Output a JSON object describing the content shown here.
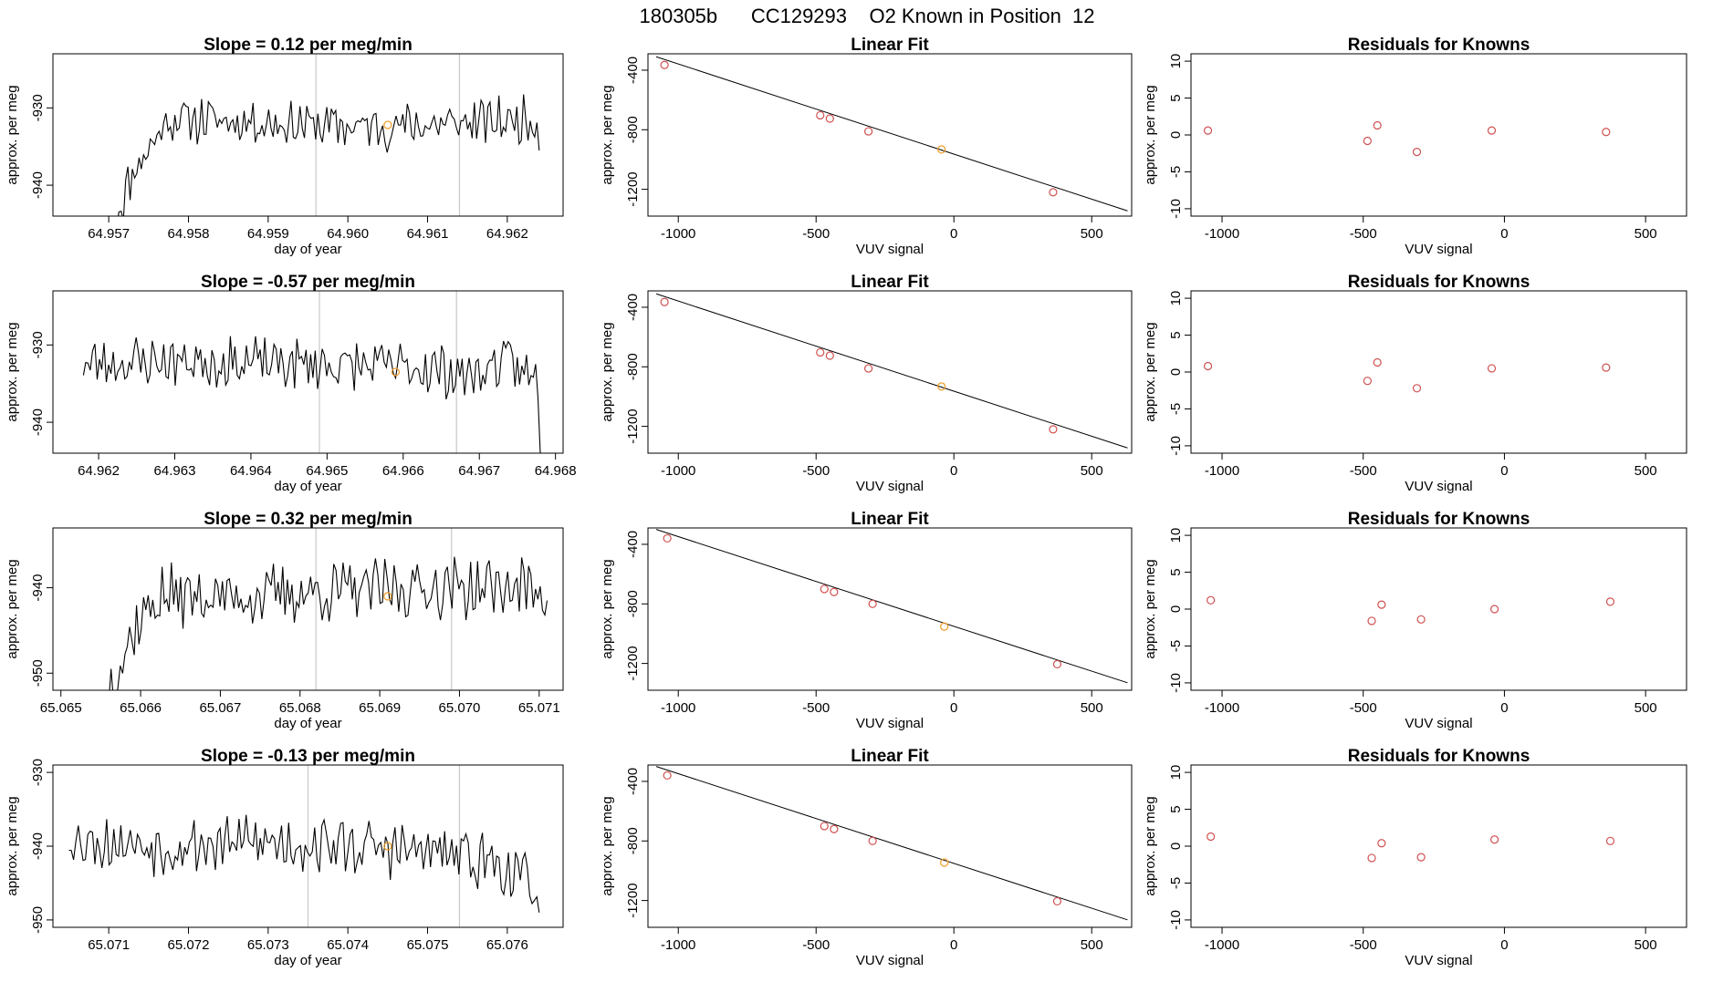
{
  "header": {
    "title": "180305b      CC129293    O2 Known in Position  12"
  },
  "colors": {
    "series_line": "#000000",
    "highlight_point": "#f0a030",
    "known_points": "#d05050",
    "marker_lines": "#c8c8c8",
    "fit_line": "#000000"
  },
  "chart_data": [
    {
      "type": "line",
      "panel": "timeseries",
      "row": 0,
      "title": "Slope =  0.12  per meg/min",
      "xlabel": "day of year",
      "ylabel": "approx. per meg",
      "xlim": [
        64.9563,
        64.9627
      ],
      "ylim": [
        -944,
        -923
      ],
      "xticks": [
        64.957,
        64.958,
        64.959,
        64.96,
        64.961,
        64.962
      ],
      "xtick_labels": [
        "64.957",
        "64.958",
        "64.959",
        "64.960",
        "64.961",
        "64.962"
      ],
      "yticks": [
        -930,
        -940
      ],
      "ytick_labels": [
        "-930",
        "-940"
      ],
      "vlines": [
        64.9596,
        64.9614
      ],
      "highlight": {
        "x": 64.9605,
        "y": -932.2
      },
      "series": {
        "x_start": 64.9571,
        "x_end": 64.9624,
        "seed": 11,
        "anchors": [
          [
            0.0,
            -944
          ],
          [
            0.04,
            -938
          ],
          [
            0.08,
            -935
          ],
          [
            0.12,
            -931.5
          ],
          [
            0.2,
            -931.5
          ],
          [
            0.4,
            -932
          ],
          [
            0.6,
            -932.5
          ],
          [
            0.8,
            -932
          ],
          [
            1.0,
            -931.5
          ]
        ],
        "amp": 2.5,
        "points": 190,
        "end_value": -935.5
      }
    },
    {
      "type": "line",
      "panel": "fit",
      "row": 0,
      "title": "Linear Fit",
      "xlabel": "VUV signal",
      "ylabel": "approx. per meg",
      "xlim": [
        -1110,
        645
      ],
      "ylim": [
        -1380,
        -290
      ],
      "xticks": [
        -1000,
        -500,
        0,
        500
      ],
      "xtick_labels": [
        "-1000",
        "-500",
        "0",
        "500"
      ],
      "yticks": [
        -400,
        -800,
        -1200
      ],
      "ytick_labels": [
        "-400",
        "-800",
        "-1200"
      ],
      "line": {
        "x": [
          -1080,
          630
        ],
        "y": [
          -310,
          -1345
        ]
      },
      "knowns": {
        "x": [
          -1050,
          -485,
          -450,
          -310,
          360
        ],
        "y": [
          -365,
          -703,
          -725,
          -811,
          -1220
        ]
      },
      "highlight": {
        "x": -45,
        "y": -932
      }
    },
    {
      "type": "scatter",
      "panel": "residuals",
      "row": 0,
      "title": "Residuals for Knowns",
      "xlabel": "VUV signal",
      "ylabel": "approx. per meg",
      "xlim": [
        -1110,
        645
      ],
      "ylim": [
        -11,
        11
      ],
      "xticks": [
        -1000,
        -500,
        0,
        500
      ],
      "xtick_labels": [
        "-1000",
        "-500",
        "0",
        "500"
      ],
      "yticks": [
        10,
        5,
        0,
        -5,
        -10
      ],
      "ytick_labels": [
        "10",
        "5",
        "0",
        "-5",
        "-10"
      ],
      "points": {
        "x": [
          -1050,
          -485,
          -450,
          -310,
          -45,
          360
        ],
        "y": [
          0.6,
          -0.8,
          1.3,
          -2.3,
          0.6,
          0.4
        ]
      }
    },
    {
      "type": "line",
      "panel": "timeseries",
      "row": 1,
      "title": "Slope =  -0.57  per meg/min",
      "xlabel": "day of year",
      "ylabel": "approx. per meg",
      "xlim": [
        64.9614,
        64.9681
      ],
      "ylim": [
        -944,
        -923
      ],
      "xticks": [
        64.962,
        64.963,
        64.964,
        64.965,
        64.966,
        64.967,
        64.968
      ],
      "xtick_labels": [
        "64.962",
        "64.963",
        "64.964",
        "64.965",
        "64.966",
        "64.967",
        "64.968"
      ],
      "yticks": [
        -930,
        -940
      ],
      "ytick_labels": [
        "-930",
        "-940"
      ],
      "vlines": [
        64.9649,
        64.9667
      ],
      "highlight": {
        "x": 64.9659,
        "y": -933.5
      },
      "series": {
        "x_start": 64.9618,
        "x_end": 64.9678,
        "seed": 23,
        "anchors": [
          [
            0.0,
            -932.5
          ],
          [
            0.2,
            -932
          ],
          [
            0.5,
            -932.5
          ],
          [
            0.75,
            -933
          ],
          [
            0.85,
            -934
          ],
          [
            0.92,
            -932
          ],
          [
            1.0,
            -935
          ]
        ],
        "amp": 2.8,
        "points": 200,
        "end_value": -944
      }
    },
    {
      "type": "line",
      "panel": "fit",
      "row": 1,
      "title": "Linear Fit",
      "xlabel": "VUV signal",
      "ylabel": "approx. per meg",
      "xlim": [
        -1110,
        645
      ],
      "ylim": [
        -1380,
        -290
      ],
      "xticks": [
        -1000,
        -500,
        0,
        500
      ],
      "xtick_labels": [
        "-1000",
        "-500",
        "0",
        "500"
      ],
      "yticks": [
        -400,
        -800,
        -1200
      ],
      "ytick_labels": [
        "-400",
        "-800",
        "-1200"
      ],
      "line": {
        "x": [
          -1080,
          630
        ],
        "y": [
          -310,
          -1345
        ]
      },
      "knowns": {
        "x": [
          -1050,
          -485,
          -450,
          -310,
          360
        ],
        "y": [
          -365,
          -703,
          -725,
          -811,
          -1220
        ]
      },
      "highlight": {
        "x": -45,
        "y": -932
      }
    },
    {
      "type": "scatter",
      "panel": "residuals",
      "row": 1,
      "title": "Residuals for Knowns",
      "xlabel": "VUV signal",
      "ylabel": "approx. per meg",
      "xlim": [
        -1110,
        645
      ],
      "ylim": [
        -11,
        11
      ],
      "xticks": [
        -1000,
        -500,
        0,
        500
      ],
      "xtick_labels": [
        "-1000",
        "-500",
        "0",
        "500"
      ],
      "yticks": [
        10,
        5,
        0,
        -5,
        -10
      ],
      "ytick_labels": [
        "10",
        "5",
        "0",
        "-5",
        "-10"
      ],
      "points": {
        "x": [
          -1050,
          -485,
          -450,
          -310,
          -45,
          360
        ],
        "y": [
          0.8,
          -1.2,
          1.3,
          -2.2,
          0.5,
          0.6
        ]
      }
    },
    {
      "type": "line",
      "panel": "timeseries",
      "row": 2,
      "title": "Slope =  0.32  per meg/min",
      "xlabel": "day of year",
      "ylabel": "approx. per meg",
      "xlim": [
        65.0649,
        65.0713
      ],
      "ylim": [
        -952,
        -933
      ],
      "xticks": [
        65.065,
        65.066,
        65.067,
        65.068,
        65.069,
        65.07,
        65.071
      ],
      "xtick_labels": [
        "65.065",
        "65.066",
        "65.067",
        "65.068",
        "65.069",
        "65.070",
        "65.071"
      ],
      "yticks": [
        -940,
        -950
      ],
      "ytick_labels": [
        "-940",
        "-950"
      ],
      "vlines": [
        65.0682,
        65.0699
      ],
      "highlight": {
        "x": 65.0691,
        "y": -941
      },
      "series": {
        "x_start": 65.0656,
        "x_end": 65.0711,
        "seed": 37,
        "anchors": [
          [
            0.0,
            -952
          ],
          [
            0.04,
            -947
          ],
          [
            0.08,
            -943
          ],
          [
            0.12,
            -941
          ],
          [
            0.3,
            -941
          ],
          [
            0.5,
            -940.5
          ],
          [
            0.7,
            -940
          ],
          [
            1.0,
            -940
          ]
        ],
        "amp": 3.0,
        "points": 190,
        "end_value": -941.5
      }
    },
    {
      "type": "line",
      "panel": "fit",
      "row": 2,
      "title": "Linear Fit",
      "xlabel": "VUV signal",
      "ylabel": "approx. per meg",
      "xlim": [
        -1110,
        645
      ],
      "ylim": [
        -1380,
        -290
      ],
      "xticks": [
        -1000,
        -500,
        0,
        500
      ],
      "xtick_labels": [
        "-1000",
        "-500",
        "0",
        "500"
      ],
      "yticks": [
        -400,
        -800,
        -1200
      ],
      "ytick_labels": [
        "-400",
        "-800",
        "-1200"
      ],
      "line": {
        "x": [
          -1080,
          630
        ],
        "y": [
          -300,
          -1330
        ]
      },
      "knowns": {
        "x": [
          -1040,
          -470,
          -435,
          -295,
          375
        ],
        "y": [
          -360,
          -700,
          -720,
          -800,
          -1205
        ]
      },
      "highlight": {
        "x": -35,
        "y": -952
      }
    },
    {
      "type": "scatter",
      "panel": "residuals",
      "row": 2,
      "title": "Residuals for Knowns",
      "xlabel": "VUV signal",
      "ylabel": "approx. per meg",
      "xlim": [
        -1110,
        645
      ],
      "ylim": [
        -11,
        11
      ],
      "xticks": [
        -1000,
        -500,
        0,
        500
      ],
      "xtick_labels": [
        "-1000",
        "-500",
        "0",
        "500"
      ],
      "yticks": [
        10,
        5,
        0,
        -5,
        -10
      ],
      "ytick_labels": [
        "10",
        "5",
        "0",
        "-5",
        "-10"
      ],
      "points": {
        "x": [
          -1040,
          -470,
          -435,
          -295,
          -35,
          375
        ],
        "y": [
          1.2,
          -1.6,
          0.6,
          -1.4,
          0.0,
          1.0
        ]
      }
    },
    {
      "type": "line",
      "panel": "timeseries",
      "row": 3,
      "title": "Slope =  -0.13  per meg/min",
      "xlabel": "day of year",
      "ylabel": "approx. per meg",
      "xlim": [
        65.0703,
        65.0767
      ],
      "ylim": [
        -951,
        -929
      ],
      "xticks": [
        65.071,
        65.072,
        65.073,
        65.074,
        65.075,
        65.076
      ],
      "xtick_labels": [
        "65.071",
        "65.072",
        "65.073",
        "65.074",
        "65.075",
        "65.076"
      ],
      "yticks": [
        -930,
        -940,
        -950
      ],
      "ytick_labels": [
        "-930",
        "-940",
        "-950"
      ],
      "vlines": [
        65.0735,
        65.0754
      ],
      "highlight": {
        "x": 65.0745,
        "y": -940
      },
      "series": {
        "x_start": 65.0705,
        "x_end": 65.0764,
        "seed": 53,
        "anchors": [
          [
            0.0,
            -939
          ],
          [
            0.2,
            -940
          ],
          [
            0.4,
            -939.5
          ],
          [
            0.6,
            -940
          ],
          [
            0.8,
            -941
          ],
          [
            0.9,
            -942
          ],
          [
            1.0,
            -946
          ]
        ],
        "amp": 3.2,
        "points": 200,
        "end_value": -949
      }
    },
    {
      "type": "line",
      "panel": "fit",
      "row": 3,
      "title": "Linear Fit",
      "xlabel": "VUV signal",
      "ylabel": "approx. per meg",
      "xlim": [
        -1110,
        645
      ],
      "ylim": [
        -1380,
        -290
      ],
      "xticks": [
        -1000,
        -500,
        0,
        500
      ],
      "xtick_labels": [
        "-1000",
        "-500",
        "0",
        "500"
      ],
      "yticks": [
        -400,
        -800,
        -1200
      ],
      "ytick_labels": [
        "-400",
        "-800",
        "-1200"
      ],
      "line": {
        "x": [
          -1080,
          630
        ],
        "y": [
          -300,
          -1330
        ]
      },
      "knowns": {
        "x": [
          -1040,
          -470,
          -435,
          -295,
          375
        ],
        "y": [
          -360,
          -700,
          -720,
          -800,
          -1205
        ]
      },
      "highlight": {
        "x": -35,
        "y": -945
      }
    },
    {
      "type": "scatter",
      "panel": "residuals",
      "row": 3,
      "title": "Residuals for Knowns",
      "xlabel": "VUV signal",
      "ylabel": "approx. per meg",
      "xlim": [
        -1110,
        645
      ],
      "ylim": [
        -11,
        11
      ],
      "xticks": [
        -1000,
        -500,
        0,
        500
      ],
      "xtick_labels": [
        "-1000",
        "-500",
        "0",
        "500"
      ],
      "yticks": [
        10,
        5,
        0,
        -5,
        -10
      ],
      "ytick_labels": [
        "10",
        "5",
        "0",
        "-5",
        "-10"
      ],
      "points": {
        "x": [
          -1040,
          -470,
          -435,
          -295,
          -35,
          375
        ],
        "y": [
          1.3,
          -1.6,
          0.4,
          -1.5,
          0.9,
          0.7
        ]
      }
    }
  ]
}
